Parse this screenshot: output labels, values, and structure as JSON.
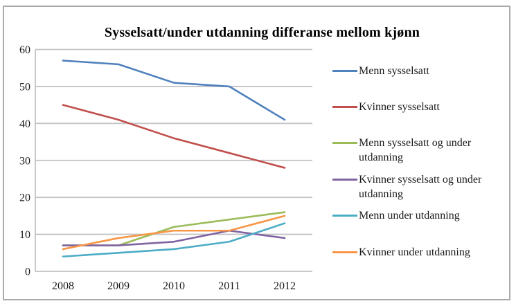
{
  "chart_data": {
    "type": "line",
    "title": "Sysselsatt/under utdanning differanse mellom kjønn",
    "categories": [
      "2008",
      "2009",
      "2010",
      "2011",
      "2012"
    ],
    "series": [
      {
        "name": "Menn sysselsatt",
        "color": "#4F81BD",
        "values": [
          57,
          56,
          51,
          50,
          41
        ]
      },
      {
        "name": "Kvinner sysselsatt",
        "color": "#C0504D",
        "values": [
          45,
          41,
          36,
          32,
          28
        ]
      },
      {
        "name": "Menn sysselsatt og under utdanning",
        "color": "#9BBB59",
        "values": [
          7,
          7,
          12,
          14,
          16
        ]
      },
      {
        "name": "Kvinner sysselsatt og under utdanning",
        "color": "#8064A2",
        "values": [
          7,
          7,
          8,
          11,
          9
        ]
      },
      {
        "name": "Menn under utdanning",
        "color": "#4BACC6",
        "values": [
          4,
          5,
          6,
          8,
          13
        ]
      },
      {
        "name": "Kvinner under utdanning",
        "color": "#F79646",
        "values": [
          6,
          9,
          11,
          11,
          15
        ]
      }
    ],
    "xlabel": "",
    "ylabel": "",
    "ylim": [
      0,
      60
    ],
    "yticks": [
      0,
      10,
      20,
      30,
      40,
      50,
      60
    ],
    "grid": true,
    "legend_position": "right",
    "colors": {
      "gridline": "#c3c3c3",
      "axis_line": "#c3c3c3",
      "figure_border": "#a9a9a9",
      "text": "#1a1a1a"
    }
  }
}
